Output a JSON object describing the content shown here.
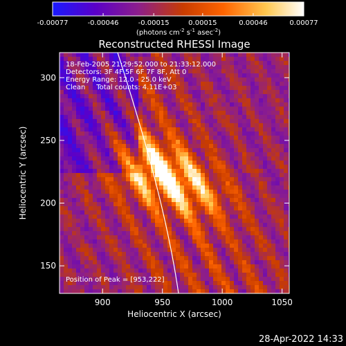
{
  "colorbar": {
    "tick_labels": [
      "-0.00077",
      "-0.00046",
      "-0.00015",
      "0.00015",
      "0.00046",
      "0.00077"
    ],
    "tick_values": [
      -0.00077,
      -0.00046,
      -0.00015,
      0.00015,
      0.00046,
      0.00077
    ],
    "range": [
      -0.00077,
      0.00077
    ],
    "units_label_parts": {
      "a": "(photons cm",
      "b": "-2",
      "c": " s",
      "d": "-1",
      "e": " asec",
      "f": "-2",
      "g": ")"
    },
    "colors": [
      "#1a1aff",
      "#5a00c8",
      "#8c1e8c",
      "#c83c00",
      "#ff6400",
      "#ffc850",
      "#ffffff"
    ]
  },
  "plot": {
    "title": "Reconstructed RHESSI Image",
    "annotations": [
      "18-Feb-2005 21:29:52.000 to 21:33:12.000",
      "Detectors: 3F 4F 5F 6F 7F 8F, Att 0",
      "Energy Range: 12.0 - 25.0 keV",
      "Clean     Total counts: 4.11E+03"
    ],
    "peak_label": "Position of Peak = [953,222]",
    "xlabel": "Heliocentric X (arcsec)",
    "ylabel": "Heliocentric Y (arcsec)",
    "x_ticks": [
      {
        "value": 900,
        "label": "900"
      },
      {
        "value": 950,
        "label": "950"
      },
      {
        "value": 1000,
        "label": "1000"
      },
      {
        "value": 1050,
        "label": "1050"
      }
    ],
    "y_ticks": [
      {
        "value": 150,
        "label": "150"
      },
      {
        "value": 200,
        "label": "200"
      },
      {
        "value": 250,
        "label": "250"
      },
      {
        "value": 300,
        "label": "300"
      }
    ],
    "xlim": [
      864,
      1056
    ],
    "ylim": [
      128,
      320
    ],
    "peak": {
      "x": 953,
      "y": 222
    },
    "limb_color": "#ffffff"
  },
  "timestamp": "28-Apr-2022 14:33"
}
